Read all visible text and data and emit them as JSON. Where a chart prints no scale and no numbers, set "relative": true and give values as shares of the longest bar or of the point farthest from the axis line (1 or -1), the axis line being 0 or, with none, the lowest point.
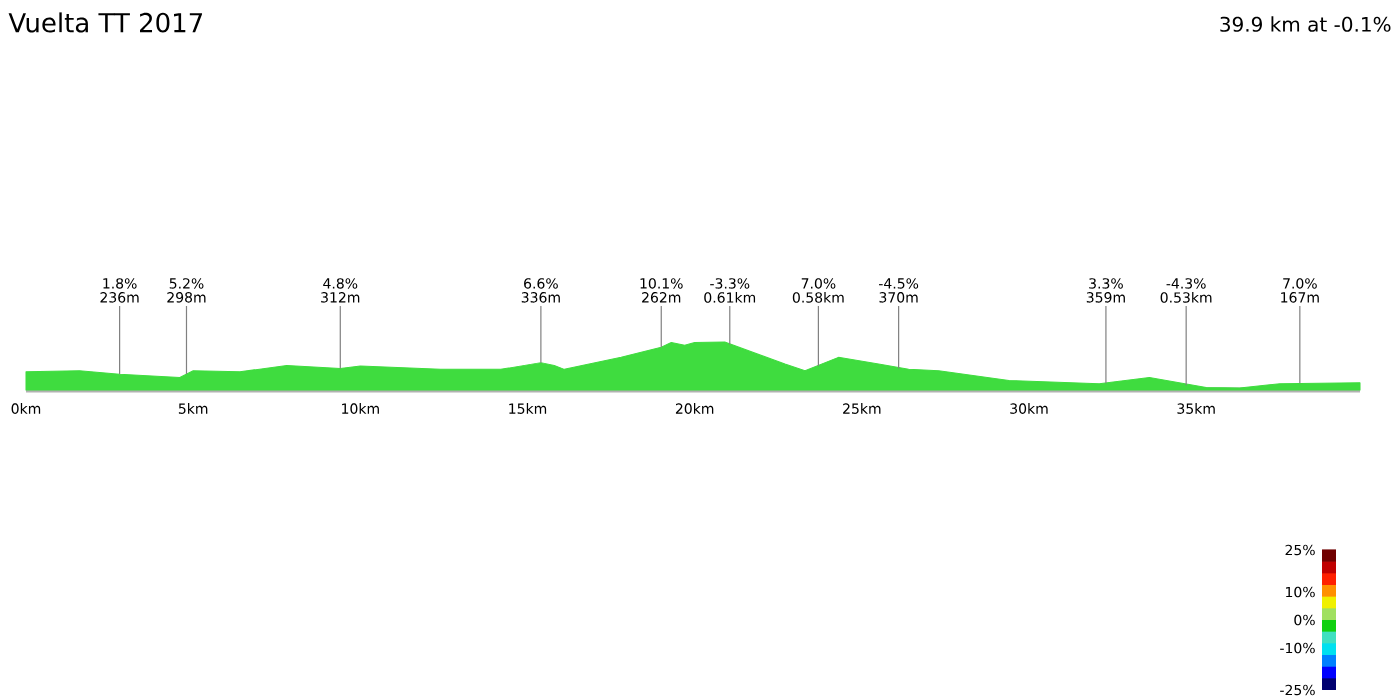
{
  "chart_data": {
    "type": "area",
    "title": "Vuelta TT 2017",
    "subtitle": "39.9 km at -0.1%",
    "relative": true,
    "color": "#3fdc3f",
    "x": [
      0,
      1.6,
      2.8,
      4.6,
      5.0,
      6.4,
      7.8,
      9.4,
      10.0,
      12.4,
      14.2,
      15.4,
      15.8,
      16.1,
      17.8,
      19.0,
      19.3,
      19.7,
      20.0,
      20.9,
      22.7,
      23.3,
      24.3,
      25.5,
      26.4,
      27.3,
      29.4,
      32.1,
      33.6,
      35.3,
      36.3,
      37.5,
      39.9
    ],
    "values": [
      0.38,
      0.4,
      0.33,
      0.26,
      0.4,
      0.38,
      0.51,
      0.45,
      0.5,
      0.43,
      0.43,
      0.57,
      0.51,
      0.43,
      0.68,
      0.89,
      0.99,
      0.93,
      0.99,
      1.0,
      0.54,
      0.4,
      0.68,
      0.54,
      0.43,
      0.4,
      0.2,
      0.13,
      0.26,
      0.05,
      0.04,
      0.13,
      0.15
    ],
    "xlim": [
      0,
      39.9
    ],
    "xticks": [
      {
        "value": 0,
        "label": "0km"
      },
      {
        "value": 5,
        "label": "5km"
      },
      {
        "value": 10,
        "label": "10km"
      },
      {
        "value": 15,
        "label": "15km"
      },
      {
        "value": 20,
        "label": "20km"
      },
      {
        "value": 25,
        "label": "25km"
      },
      {
        "value": 30,
        "label": "30km"
      },
      {
        "value": 35,
        "label": "35km"
      }
    ],
    "annotations": [
      "1.8%",
      {
        "text": "236m",
        "x": 2.8,
        "y": 0.33
      },
      "5.2%",
      {
        "text": "298m",
        "x": 4.8,
        "y": 0.33
      },
      "4.8%",
      {
        "text": "312m",
        "x": 9.4,
        "y": 0.45
      },
      "6.6%",
      {
        "text": "336m",
        "x": 15.4,
        "y": 0.57
      },
      "10.1%",
      {
        "text": "262m",
        "x": 19.0,
        "y": 0.89
      },
      "-3.3%",
      {
        "text": "0.61km",
        "x": 21.05,
        "y": 0.95
      },
      "7.0%",
      {
        "text": "0.58km",
        "x": 23.7,
        "y": 0.5
      },
      "-4.5%",
      {
        "text": "370m",
        "x": 26.1,
        "y": 0.45
      },
      "3.3%",
      {
        "text": "359m",
        "x": 32.3,
        "y": 0.14
      },
      "-4.3%",
      {
        "text": "0.53km",
        "x": 34.7,
        "y": 0.1
      },
      "7.0%",
      {
        "text": "167m",
        "x": 38.1,
        "y": 0.14
      },
      "25%",
      "10%",
      "0%",
      "-10%",
      "-25%"
    ]
  }
}
